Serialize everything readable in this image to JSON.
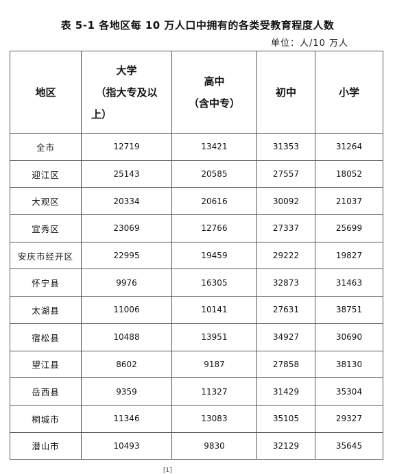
{
  "title": "表 5-1 各地区每 10 万人口中拥有的各类受教育程度人数",
  "unit": "单位：人/10 万人",
  "headers": {
    "region": "地区",
    "college_line1": "大学",
    "college_line2": "（指大专及以",
    "college_line3": "上）",
    "high_line1": "高中",
    "high_line2": "（含中专）",
    "middle": "初中",
    "primary": "小学"
  },
  "rows": [
    {
      "region": "全市",
      "college": "12719",
      "high": "13421",
      "middle": "31353",
      "primary": "31264"
    },
    {
      "region": "迎江区",
      "college": "25143",
      "high": "20585",
      "middle": "27557",
      "primary": "18052"
    },
    {
      "region": "大观区",
      "college": "20334",
      "high": "20616",
      "middle": "30092",
      "primary": "21037"
    },
    {
      "region": "宜秀区",
      "college": "23069",
      "high": "12766",
      "middle": "27337",
      "primary": "25699"
    },
    {
      "region": "安庆市经开区",
      "college": "22995",
      "high": "19459",
      "middle": "29222",
      "primary": "19827"
    },
    {
      "region": "怀宁县",
      "college": "9976",
      "high": "16305",
      "middle": "32873",
      "primary": "31463"
    },
    {
      "region": "太湖县",
      "college": "11006",
      "high": "10141",
      "middle": "27631",
      "primary": "38751"
    },
    {
      "region": "宿松县",
      "college": "10488",
      "high": "13951",
      "middle": "34927",
      "primary": "30690"
    },
    {
      "region": "望江县",
      "college": "8602",
      "high": "9187",
      "middle": "27858",
      "primary": "38130"
    },
    {
      "region": "岳西县",
      "college": "9359",
      "high": "11327",
      "middle": "31429",
      "primary": "35304"
    },
    {
      "region": "桐城市",
      "college": "11346",
      "high": "13083",
      "middle": "35105",
      "primary": "29327"
    },
    {
      "region": "潜山市",
      "college": "10493",
      "high": "9830",
      "middle": "32129",
      "primary": "35645"
    }
  ],
  "footer_mark": "[1]"
}
